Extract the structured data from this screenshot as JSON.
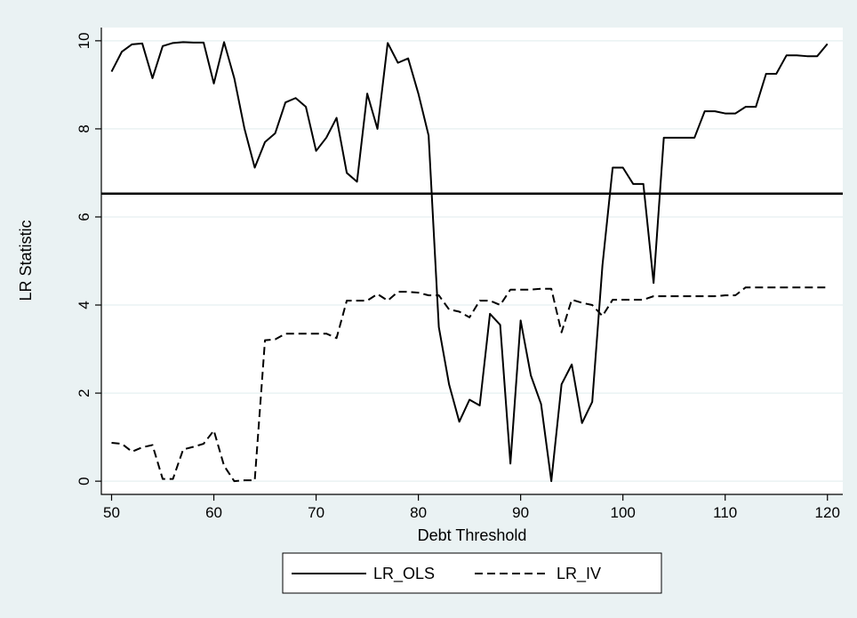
{
  "chart_data": {
    "type": "line",
    "xlabel": "Debt Threshold",
    "ylabel": "LR Statistic",
    "xlim": [
      49,
      121.5
    ],
    "ylim": [
      -0.3,
      10.3
    ],
    "xticks": [
      50,
      60,
      70,
      80,
      90,
      100,
      110,
      120
    ],
    "yticks": [
      0,
      2,
      4,
      6,
      8,
      10
    ],
    "xtick_labels": [
      "50",
      "60",
      "70",
      "80",
      "90",
      "100",
      "110",
      "120"
    ],
    "ytick_labels": [
      "0",
      "2",
      "4",
      "6",
      "8",
      "10"
    ],
    "grid": "horizontal",
    "legend_position": "bottom",
    "reference_line": {
      "y": 6.53
    },
    "series": [
      {
        "name": "LR_OLS",
        "style": "solid",
        "x": [
          50,
          51,
          52,
          53,
          54,
          55,
          56,
          57,
          58,
          59,
          60,
          61,
          62,
          63,
          64,
          65,
          66,
          67,
          68,
          69,
          70,
          71,
          72,
          73,
          74,
          75,
          76,
          77,
          78,
          79,
          80,
          81,
          82,
          83,
          84,
          85,
          86,
          87,
          88,
          89,
          90,
          91,
          92,
          93,
          94,
          95,
          96,
          97,
          98,
          99,
          100,
          101,
          102,
          103,
          104,
          105,
          106,
          107,
          108,
          109,
          110,
          111,
          112,
          113,
          114,
          115,
          116,
          117,
          118,
          119,
          120
        ],
        "y": [
          9.3,
          9.75,
          9.92,
          9.94,
          9.15,
          9.88,
          9.95,
          9.97,
          9.96,
          9.96,
          9.03,
          9.97,
          9.15,
          8.0,
          7.12,
          7.7,
          7.9,
          8.6,
          8.7,
          8.5,
          7.5,
          7.8,
          8.25,
          7.0,
          6.8,
          8.8,
          8.0,
          9.95,
          9.5,
          9.6,
          8.8,
          7.85,
          3.5,
          2.2,
          1.35,
          1.85,
          1.72,
          3.8,
          3.55,
          0.4,
          3.65,
          2.4,
          1.75,
          0.0,
          2.2,
          2.65,
          1.32,
          1.8,
          4.9,
          7.12,
          7.12,
          6.75,
          6.75,
          4.5,
          7.8,
          7.8,
          7.8,
          7.8,
          8.4,
          8.4,
          8.35,
          8.35,
          8.5,
          8.5,
          9.25,
          9.25,
          9.67,
          9.67,
          9.65,
          9.65,
          9.93
        ]
      },
      {
        "name": "LR_IV",
        "style": "dashed",
        "x": [
          50,
          51,
          52,
          53,
          54,
          55,
          56,
          57,
          58,
          59,
          60,
          61,
          62,
          63,
          64,
          65,
          66,
          67,
          68,
          69,
          70,
          71,
          72,
          73,
          74,
          75,
          76,
          77,
          78,
          79,
          80,
          81,
          82,
          83,
          84,
          85,
          86,
          87,
          88,
          89,
          90,
          91,
          92,
          93,
          94,
          95,
          96,
          97,
          98,
          99,
          100,
          101,
          102,
          103,
          104,
          105,
          106,
          107,
          108,
          109,
          110,
          111,
          112,
          113,
          114,
          115,
          116,
          117,
          118,
          119,
          120
        ],
        "y": [
          0.87,
          0.85,
          0.67,
          0.77,
          0.82,
          0.05,
          0.05,
          0.72,
          0.78,
          0.85,
          1.15,
          0.35,
          0.0,
          0.02,
          0.02,
          3.2,
          3.22,
          3.35,
          3.35,
          3.35,
          3.35,
          3.35,
          3.25,
          4.1,
          4.1,
          4.1,
          4.25,
          4.1,
          4.3,
          4.3,
          4.28,
          4.22,
          4.22,
          3.9,
          3.85,
          3.72,
          4.1,
          4.1,
          4.0,
          4.35,
          4.35,
          4.35,
          4.37,
          4.37,
          3.38,
          4.12,
          4.05,
          4.0,
          3.75,
          4.12,
          4.12,
          4.12,
          4.12,
          4.2,
          4.2,
          4.2,
          4.2,
          4.2,
          4.2,
          4.2,
          4.22,
          4.22,
          4.4,
          4.4,
          4.4,
          4.4,
          4.4,
          4.4,
          4.4,
          4.4,
          4.4
        ]
      }
    ]
  }
}
